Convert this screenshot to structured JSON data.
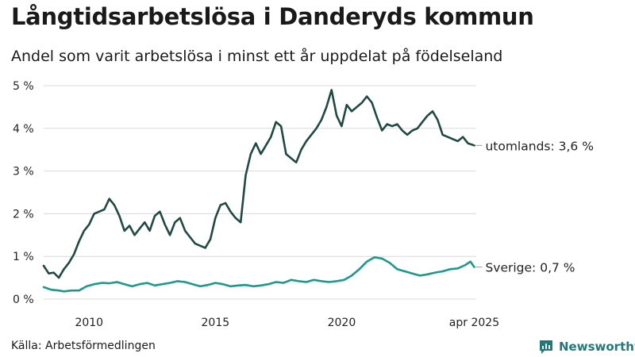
{
  "header": {
    "title": "Långtidsarbetslösa i Danderyds kommun",
    "subtitle": "Andel som varit arbetslösa i minst ett år uppdelat på födelseland"
  },
  "footer": {
    "source": "Källa: Arbetsförmedlingen",
    "brand": "Newsworthy"
  },
  "colors": {
    "utomlands": "#1f4a42",
    "sverige": "#1a9a8a",
    "grid": "#d9d9d9",
    "brand": "#1f7a7a"
  },
  "chart_data": {
    "type": "line",
    "title": "Långtidsarbetslösa i Danderyds kommun",
    "subtitle": "Andel som varit arbetslösa i minst ett år uppdelat på födelseland",
    "xlim": [
      2008.2,
      2025.33
    ],
    "ylim": [
      0,
      5
    ],
    "grid": "horizontal",
    "yticks": [
      {
        "v": 0,
        "label": "0 %"
      },
      {
        "v": 1,
        "label": "1 %"
      },
      {
        "v": 2,
        "label": "2 %"
      },
      {
        "v": 3,
        "label": "3 %"
      },
      {
        "v": 4,
        "label": "4 %"
      },
      {
        "v": 5,
        "label": "5 %"
      }
    ],
    "xticks": [
      {
        "v": 2010,
        "label": "2010"
      },
      {
        "v": 2015,
        "label": "2015"
      },
      {
        "v": 2020,
        "label": "2020"
      },
      {
        "v": 2025.25,
        "label": "apr 2025"
      }
    ],
    "series": [
      {
        "name": "utomlands",
        "end_label": "utomlands: 3,6 %",
        "color": "#1f4a42",
        "x": [
          2008.2,
          2008.4,
          2008.6,
          2008.8,
          2009.0,
          2009.2,
          2009.4,
          2009.6,
          2009.8,
          2010.0,
          2010.2,
          2010.4,
          2010.6,
          2010.8,
          2011.0,
          2011.2,
          2011.4,
          2011.6,
          2011.8,
          2012.0,
          2012.2,
          2012.4,
          2012.6,
          2012.8,
          2013.0,
          2013.2,
          2013.4,
          2013.6,
          2013.8,
          2014.0,
          2014.2,
          2014.4,
          2014.6,
          2014.8,
          2015.0,
          2015.2,
          2015.4,
          2015.6,
          2015.8,
          2016.0,
          2016.2,
          2016.4,
          2016.6,
          2016.8,
          2017.0,
          2017.2,
          2017.4,
          2017.6,
          2017.8,
          2018.0,
          2018.2,
          2018.4,
          2018.6,
          2018.8,
          2019.0,
          2019.2,
          2019.4,
          2019.6,
          2019.8,
          2020.0,
          2020.2,
          2020.4,
          2020.6,
          2020.8,
          2021.0,
          2021.2,
          2021.4,
          2021.6,
          2021.8,
          2022.0,
          2022.2,
          2022.4,
          2022.6,
          2022.8,
          2023.0,
          2023.2,
          2023.4,
          2023.6,
          2023.8,
          2024.0,
          2024.2,
          2024.4,
          2024.6,
          2024.8,
          2025.0,
          2025.25
        ],
        "values": [
          0.78,
          0.6,
          0.62,
          0.5,
          0.7,
          0.85,
          1.05,
          1.35,
          1.6,
          1.75,
          2.0,
          2.05,
          2.1,
          2.35,
          2.2,
          1.95,
          1.6,
          1.72,
          1.5,
          1.65,
          1.8,
          1.6,
          1.95,
          2.05,
          1.75,
          1.5,
          1.8,
          1.9,
          1.6,
          1.45,
          1.3,
          1.25,
          1.2,
          1.4,
          1.9,
          2.2,
          2.25,
          2.05,
          1.9,
          1.8,
          2.9,
          3.4,
          3.65,
          3.4,
          3.6,
          3.8,
          4.15,
          4.05,
          3.4,
          3.3,
          3.2,
          3.5,
          3.7,
          3.85,
          4.0,
          4.2,
          4.5,
          4.9,
          4.3,
          4.05,
          4.55,
          4.4,
          4.5,
          4.6,
          4.75,
          4.6,
          4.25,
          3.95,
          4.1,
          4.05,
          4.1,
          3.95,
          3.85,
          3.95,
          4.0,
          4.15,
          4.3,
          4.4,
          4.2,
          3.85,
          3.8,
          3.75,
          3.7,
          3.8,
          3.65,
          3.6
        ]
      },
      {
        "name": "Sverige",
        "end_label": "Sverige: 0,7 %",
        "color": "#1a9a8a",
        "x": [
          2008.2,
          2008.5,
          2008.8,
          2009.0,
          2009.3,
          2009.6,
          2009.9,
          2010.2,
          2010.5,
          2010.8,
          2011.1,
          2011.4,
          2011.7,
          2012.0,
          2012.3,
          2012.6,
          2012.9,
          2013.2,
          2013.5,
          2013.8,
          2014.1,
          2014.4,
          2014.7,
          2015.0,
          2015.3,
          2015.6,
          2015.9,
          2016.2,
          2016.5,
          2016.8,
          2017.1,
          2017.4,
          2017.7,
          2018.0,
          2018.3,
          2018.6,
          2018.9,
          2019.2,
          2019.5,
          2019.8,
          2020.1,
          2020.4,
          2020.7,
          2021.0,
          2021.3,
          2021.6,
          2021.9,
          2022.2,
          2022.5,
          2022.8,
          2023.1,
          2023.4,
          2023.7,
          2024.0,
          2024.3,
          2024.6,
          2024.9,
          2025.1,
          2025.25
        ],
        "values": [
          0.28,
          0.22,
          0.2,
          0.18,
          0.2,
          0.2,
          0.3,
          0.35,
          0.38,
          0.37,
          0.4,
          0.35,
          0.3,
          0.35,
          0.38,
          0.32,
          0.35,
          0.38,
          0.42,
          0.4,
          0.35,
          0.3,
          0.33,
          0.38,
          0.35,
          0.3,
          0.32,
          0.33,
          0.3,
          0.32,
          0.35,
          0.4,
          0.38,
          0.45,
          0.42,
          0.4,
          0.45,
          0.42,
          0.4,
          0.42,
          0.45,
          0.55,
          0.7,
          0.88,
          0.98,
          0.95,
          0.85,
          0.7,
          0.65,
          0.6,
          0.55,
          0.58,
          0.62,
          0.65,
          0.7,
          0.72,
          0.8,
          0.88,
          0.75
        ]
      }
    ]
  }
}
